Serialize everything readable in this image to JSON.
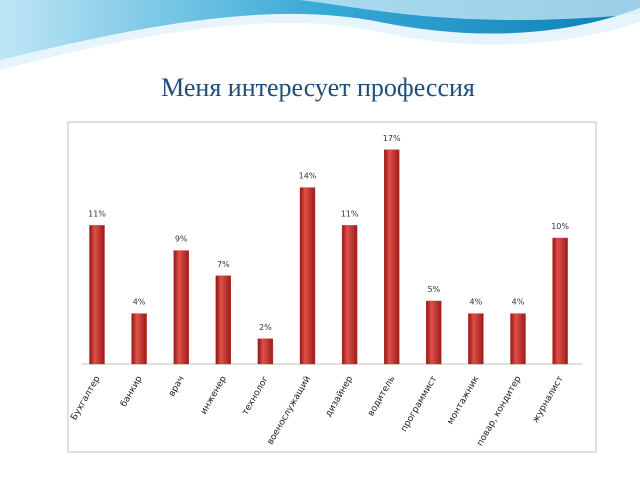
{
  "chart_data": {
    "type": "bar",
    "title": "Меня интересует профессия",
    "categories": [
      "Бухгалтер",
      "банкир",
      "врач",
      "инженер",
      "технолог",
      "военослужащий",
      "дизайнер",
      "водитель",
      "программист",
      "монтажник",
      "повар, кондитер",
      "журналист"
    ],
    "values": [
      11,
      4,
      9,
      7,
      2,
      14,
      11,
      17,
      5,
      4,
      4,
      10
    ],
    "value_labels": [
      "11%",
      "4%",
      "9%",
      "7%",
      "2%",
      "14%",
      "11%",
      "17%",
      "5%",
      "4%",
      "4%",
      "10%"
    ],
    "color": "#c0302c"
  }
}
